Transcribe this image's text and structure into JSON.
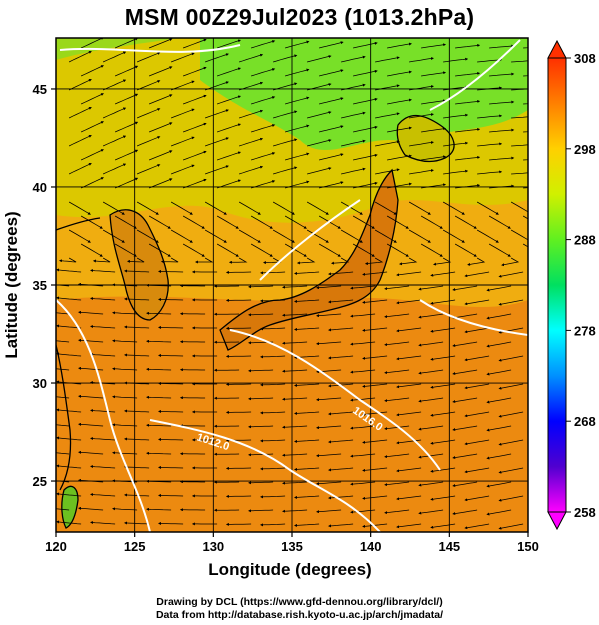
{
  "title": "MSM 00Z29Jul2023 (1013.2hPa)",
  "xlabel": "Longitude (degrees)",
  "ylabel": "Latitude  (degrees)",
  "x_ticks": [
    "120",
    "125",
    "130",
    "135",
    "140",
    "145",
    "150"
  ],
  "y_ticks": [
    "25",
    "30",
    "35",
    "40",
    "45"
  ],
  "colorbar": {
    "ticks": [
      "308",
      "298",
      "288",
      "278",
      "268",
      "258"
    ],
    "colors": [
      "#ff00ff",
      "#5000d0",
      "#0000ff",
      "#0090ff",
      "#00ffff",
      "#00e060",
      "#60f020",
      "#d0f000",
      "#ffd000",
      "#ff8000",
      "#ff3000"
    ]
  },
  "contours": [
    {
      "label": "1016.0"
    },
    {
      "label": "1012.0"
    }
  ],
  "footer": {
    "line1": "Drawing by DCL (https://www.gfd-dennou.org/library/dcl/)",
    "line2": "Data from http://database.rish.kyoto-u.ac.jp/arch/jmadata/"
  },
  "chart_data": {
    "type": "heatmap",
    "title": "MSM 00Z29Jul2023 (1013.2hPa)",
    "xlabel": "Longitude (degrees)",
    "ylabel": "Latitude  (degrees)",
    "xlim": [
      120,
      150
    ],
    "ylim": [
      22.4,
      47.6
    ],
    "x_ticks": [
      120,
      125,
      130,
      135,
      140,
      145,
      150
    ],
    "y_ticks": [
      25,
      30,
      35,
      40,
      45
    ],
    "colorbar_range": [
      258,
      308
    ],
    "colorbar_ticks": [
      308,
      298,
      288,
      278,
      268,
      258
    ],
    "overlays": [
      "streamlines",
      "white isobar contours",
      "coastlines",
      "1 degree grid"
    ]
  }
}
